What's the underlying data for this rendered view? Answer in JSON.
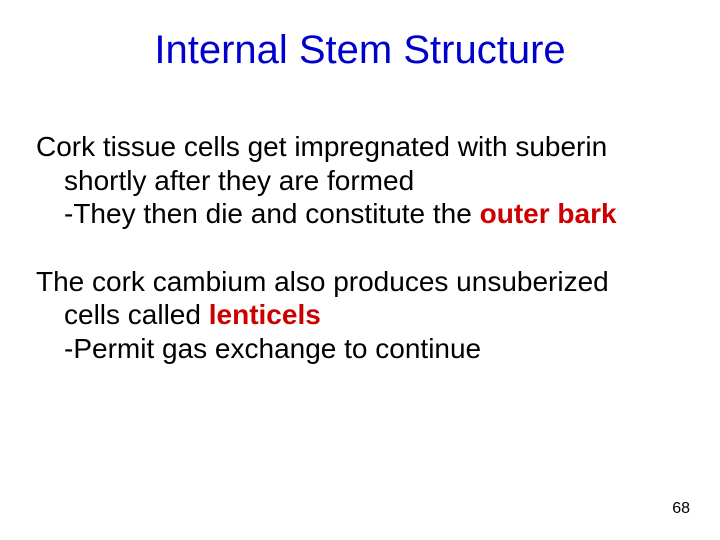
{
  "title": "Internal Stem Structure",
  "title_color": "#0000cc",
  "highlight_color": "#cc0000",
  "body_color": "#000000",
  "background_color": "#ffffff",
  "title_fontsize": 40,
  "body_fontsize": 28,
  "pagenum_fontsize": 16,
  "para1": {
    "line1": "Cork tissue cells get impregnated with suberin shortly after they are formed",
    "line2a": "-They then die and constitute the ",
    "line2b_hl": "outer bark"
  },
  "para2": {
    "line1a": "The cork cambium also produces unsuberized cells called ",
    "line1b_hl": "lenticels",
    "line2": "-Permit gas exchange to continue"
  },
  "page_number": "68"
}
